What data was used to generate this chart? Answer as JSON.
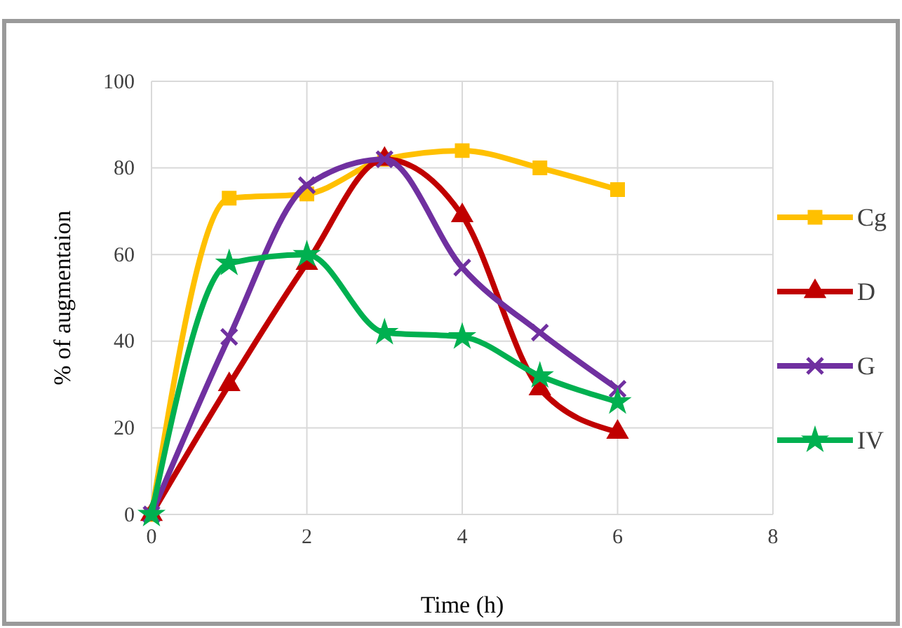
{
  "chart_data": {
    "type": "line",
    "xlabel": "Time (h)",
    "ylabel": "% of augmentaion",
    "x": [
      0,
      1,
      2,
      3,
      4,
      5,
      6
    ],
    "series": [
      {
        "name": "Cg",
        "color": "#ffc000",
        "marker": "square",
        "values": [
          0,
          73,
          74,
          82,
          84,
          80,
          75
        ]
      },
      {
        "name": "D",
        "color": "#c00000",
        "marker": "triangle",
        "values": [
          0,
          30,
          58,
          82,
          69,
          29,
          19
        ]
      },
      {
        "name": "G",
        "color": "#7030a0",
        "marker": "cross",
        "values": [
          0,
          41,
          76,
          82,
          57,
          42,
          29
        ]
      },
      {
        "name": "IV",
        "color": "#00b050",
        "marker": "star",
        "values": [
          0,
          58,
          60,
          42,
          41,
          32,
          26
        ]
      }
    ],
    "xlim": [
      0,
      8
    ],
    "xticks": [
      0,
      2,
      4,
      6,
      8
    ],
    "ylim": [
      0,
      100
    ],
    "yticks": [
      0,
      20,
      40,
      60,
      80,
      100
    ],
    "grid": true,
    "legend": "right"
  }
}
